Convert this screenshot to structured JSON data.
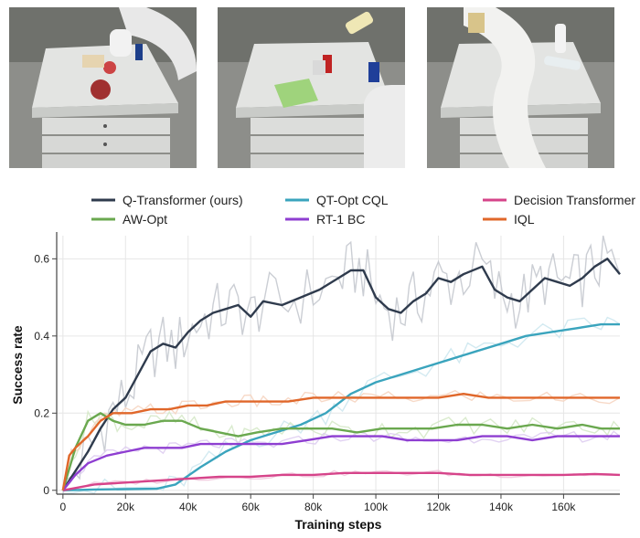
{
  "photos": [
    {
      "name": "scene-pick-can-and-fruit",
      "objects": [
        "apple",
        "onion",
        "can",
        "snack bag",
        "bottle"
      ]
    },
    {
      "name": "scene-chips-and-cans",
      "objects": [
        "chips bag",
        "coke can",
        "pepsi can",
        "bottle"
      ]
    },
    {
      "name": "scene-robot-arm-bottles",
      "objects": [
        "water bottle",
        "bottle",
        "snack bag"
      ]
    }
  ],
  "chart_data": {
    "type": "line",
    "title": "",
    "xlabel": "Training steps",
    "ylabel": "Success rate",
    "xlim": [
      -2000,
      178000
    ],
    "ylim": [
      -0.01,
      0.66
    ],
    "x_ticks": [
      0,
      20000,
      40000,
      60000,
      80000,
      100000,
      120000,
      140000,
      160000
    ],
    "x_tick_labels": [
      "0",
      "20k",
      "40k",
      "60k",
      "80k",
      "100k",
      "120k",
      "140k",
      "160k"
    ],
    "y_ticks": [
      0,
      0.2,
      0.4,
      0.6
    ],
    "y_tick_labels": [
      "0",
      "0.2",
      "0.4",
      "0.6"
    ],
    "grid": true,
    "legend_position": "top",
    "series": [
      {
        "name": "Q-Transformer (ours)",
        "color": "#2f3b4d",
        "raw_color": "#c2c6cd",
        "x": [
          0,
          4000,
          8000,
          12000,
          16000,
          20000,
          24000,
          28000,
          32000,
          36000,
          40000,
          44000,
          48000,
          52000,
          56000,
          60000,
          64000,
          70000,
          76000,
          82000,
          88000,
          92000,
          96000,
          100000,
          104000,
          108000,
          112000,
          116000,
          120000,
          124000,
          128000,
          134000,
          138000,
          142000,
          146000,
          150000,
          154000,
          158000,
          162000,
          166000,
          170000,
          174000,
          178000
        ],
        "y": [
          0,
          0.05,
          0.1,
          0.16,
          0.21,
          0.24,
          0.3,
          0.36,
          0.38,
          0.37,
          0.41,
          0.44,
          0.46,
          0.47,
          0.48,
          0.45,
          0.49,
          0.48,
          0.5,
          0.52,
          0.55,
          0.57,
          0.57,
          0.5,
          0.47,
          0.46,
          0.49,
          0.51,
          0.55,
          0.54,
          0.56,
          0.58,
          0.52,
          0.5,
          0.49,
          0.52,
          0.55,
          0.54,
          0.53,
          0.55,
          0.58,
          0.6,
          0.56
        ]
      },
      {
        "name": "QT-Opt CQL",
        "color": "#3aa4bd",
        "raw_color": "#cbe6ee",
        "x": [
          0,
          10000,
          20000,
          30000,
          36000,
          44000,
          52000,
          60000,
          68000,
          76000,
          84000,
          92000,
          100000,
          108000,
          116000,
          124000,
          132000,
          140000,
          148000,
          156000,
          164000,
          172000,
          178000
        ],
        "y": [
          0,
          0.002,
          0.003,
          0.004,
          0.015,
          0.06,
          0.1,
          0.13,
          0.15,
          0.17,
          0.2,
          0.25,
          0.28,
          0.3,
          0.32,
          0.34,
          0.36,
          0.38,
          0.4,
          0.41,
          0.42,
          0.43,
          0.43
        ]
      },
      {
        "name": "Decision Transformer",
        "color": "#d6448a",
        "raw_color": "#f0c4da",
        "x": [
          0,
          10000,
          20000,
          30000,
          40000,
          50000,
          60000,
          70000,
          80000,
          90000,
          100000,
          110000,
          120000,
          130000,
          140000,
          150000,
          160000,
          170000,
          178000
        ],
        "y": [
          0,
          0.015,
          0.02,
          0.025,
          0.03,
          0.035,
          0.035,
          0.04,
          0.04,
          0.045,
          0.045,
          0.045,
          0.045,
          0.04,
          0.04,
          0.04,
          0.04,
          0.042,
          0.04
        ]
      },
      {
        "name": "AW-Opt",
        "color": "#6aa84f",
        "raw_color": "#d3e8c6",
        "x": [
          0,
          4000,
          8000,
          12000,
          16000,
          20000,
          26000,
          32000,
          38000,
          44000,
          50000,
          56000,
          62000,
          70000,
          78000,
          86000,
          94000,
          102000,
          110000,
          118000,
          126000,
          134000,
          142000,
          150000,
          158000,
          166000,
          172000,
          178000
        ],
        "y": [
          0,
          0.11,
          0.18,
          0.2,
          0.18,
          0.17,
          0.17,
          0.18,
          0.18,
          0.16,
          0.15,
          0.14,
          0.15,
          0.16,
          0.16,
          0.16,
          0.15,
          0.16,
          0.16,
          0.16,
          0.17,
          0.17,
          0.16,
          0.17,
          0.16,
          0.17,
          0.16,
          0.16
        ]
      },
      {
        "name": "RT-1 BC",
        "color": "#8e3ed1",
        "raw_color": "#dccaf0",
        "x": [
          0,
          4000,
          8000,
          14000,
          20000,
          26000,
          32000,
          38000,
          44000,
          50000,
          56000,
          62000,
          70000,
          78000,
          86000,
          94000,
          102000,
          110000,
          118000,
          126000,
          134000,
          142000,
          150000,
          158000,
          166000,
          172000,
          178000
        ],
        "y": [
          0,
          0.04,
          0.07,
          0.09,
          0.1,
          0.11,
          0.11,
          0.11,
          0.12,
          0.12,
          0.12,
          0.12,
          0.12,
          0.13,
          0.14,
          0.14,
          0.14,
          0.13,
          0.13,
          0.13,
          0.14,
          0.14,
          0.13,
          0.14,
          0.14,
          0.14,
          0.14
        ]
      },
      {
        "name": "IQL",
        "color": "#e0672a",
        "raw_color": "#f6d2bd",
        "x": [
          0,
          2000,
          4000,
          8000,
          12000,
          16000,
          22000,
          28000,
          34000,
          40000,
          46000,
          52000,
          58000,
          64000,
          72000,
          80000,
          88000,
          96000,
          104000,
          112000,
          120000,
          128000,
          136000,
          144000,
          152000,
          160000,
          168000,
          178000
        ],
        "y": [
          0,
          0.09,
          0.11,
          0.14,
          0.18,
          0.2,
          0.2,
          0.21,
          0.21,
          0.22,
          0.22,
          0.23,
          0.23,
          0.23,
          0.23,
          0.24,
          0.24,
          0.24,
          0.24,
          0.24,
          0.24,
          0.25,
          0.24,
          0.24,
          0.24,
          0.24,
          0.24,
          0.24
        ]
      }
    ]
  }
}
